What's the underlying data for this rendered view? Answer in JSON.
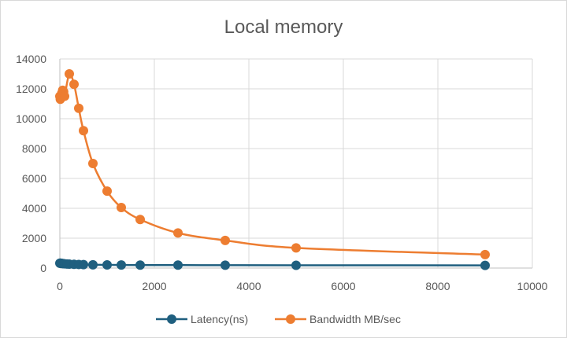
{
  "chart_data": {
    "type": "scatter",
    "title": "Local memory",
    "xlabel": "",
    "ylabel": "",
    "xlim": [
      0,
      10000
    ],
    "ylim": [
      0,
      14000
    ],
    "x_ticks": [
      0,
      2000,
      4000,
      6000,
      8000,
      10000
    ],
    "y_ticks": [
      0,
      2000,
      4000,
      6000,
      8000,
      10000,
      12000,
      14000
    ],
    "grid": "vertical and horizontal",
    "legend": "bottom",
    "smooth": true,
    "series": [
      {
        "name": "Latency(ns)",
        "color": "#1f5f7f",
        "points": [
          [
            0,
            320
          ],
          [
            10,
            330
          ],
          [
            20,
            315
          ],
          [
            40,
            310
          ],
          [
            60,
            300
          ],
          [
            80,
            290
          ],
          [
            100,
            280
          ],
          [
            150,
            270
          ],
          [
            200,
            260
          ],
          [
            300,
            250
          ],
          [
            400,
            240
          ],
          [
            500,
            230
          ],
          [
            700,
            220
          ],
          [
            1000,
            210
          ],
          [
            1300,
            205
          ],
          [
            1700,
            200
          ],
          [
            2500,
            195
          ],
          [
            3500,
            190
          ],
          [
            5000,
            185
          ],
          [
            9000,
            180
          ]
        ]
      },
      {
        "name": "Bandwidth MB/sec",
        "color": "#ed7d31",
        "points": [
          [
            0,
            11500
          ],
          [
            10,
            11300
          ],
          [
            20,
            11400
          ],
          [
            40,
            11700
          ],
          [
            60,
            11900
          ],
          [
            80,
            11800
          ],
          [
            100,
            11500
          ],
          [
            200,
            13000
          ],
          [
            300,
            12300
          ],
          [
            400,
            10700
          ],
          [
            500,
            9200
          ],
          [
            700,
            7000
          ],
          [
            1000,
            5150
          ],
          [
            1300,
            4050
          ],
          [
            1700,
            3250
          ],
          [
            2500,
            2350
          ],
          [
            3500,
            1850
          ],
          [
            5000,
            1350
          ],
          [
            9000,
            900
          ]
        ]
      }
    ]
  }
}
